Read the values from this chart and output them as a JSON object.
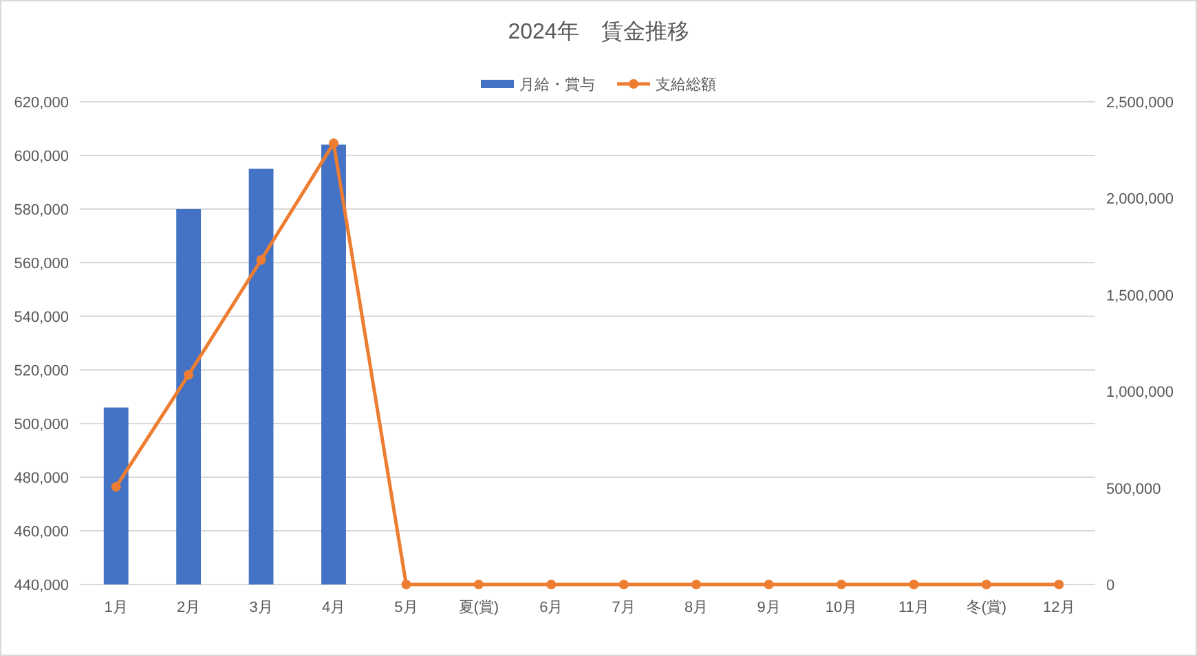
{
  "chart_data": {
    "type": "bar",
    "title": "2024年　賃金推移",
    "categories": [
      "1月",
      "2月",
      "3月",
      "4月",
      "5月",
      "夏(賞)",
      "6月",
      "7月",
      "8月",
      "9月",
      "10月",
      "11月",
      "冬(賞)",
      "12月"
    ],
    "series": [
      {
        "name": "月給・賞与",
        "color": "#4472c4",
        "values": [
          506000,
          580000,
          595000,
          604000,
          null,
          null,
          null,
          null,
          null,
          null,
          null,
          null,
          null,
          null
        ]
      },
      {
        "name": "支給総額",
        "type": "line",
        "axis": "y2",
        "color": "#ed7d31",
        "marker": "circle",
        "values": [
          506000,
          1086000,
          1681000,
          2285000,
          0,
          0,
          0,
          0,
          0,
          0,
          0,
          0,
          0,
          0
        ]
      }
    ],
    "ylim": [
      440000,
      620000
    ],
    "yticks": [
      {
        "value": 440000,
        "label": "440,000"
      },
      {
        "value": 460000,
        "label": "460,000"
      },
      {
        "value": 480000,
        "label": "480,000"
      },
      {
        "value": 500000,
        "label": "500,000"
      },
      {
        "value": 520000,
        "label": "520,000"
      },
      {
        "value": 540000,
        "label": "540,000"
      },
      {
        "value": 560000,
        "label": "560,000"
      },
      {
        "value": 580000,
        "label": "580,000"
      },
      {
        "value": 600000,
        "label": "600,000"
      },
      {
        "value": 620000,
        "label": "620,000"
      }
    ],
    "y2lim": [
      0,
      2500000
    ],
    "y2ticks": [
      0,
      {
        "value": 500000,
        "label": "500,000"
      },
      {
        "value": 1000000,
        "label": "1,000,000"
      },
      {
        "value": 1500000,
        "label": "1,500,000"
      },
      {
        "value": 2000000,
        "label": "2,000,000"
      },
      {
        "value": 2500000,
        "label": "2,500,000"
      }
    ],
    "grid": "y",
    "legend": "top"
  }
}
